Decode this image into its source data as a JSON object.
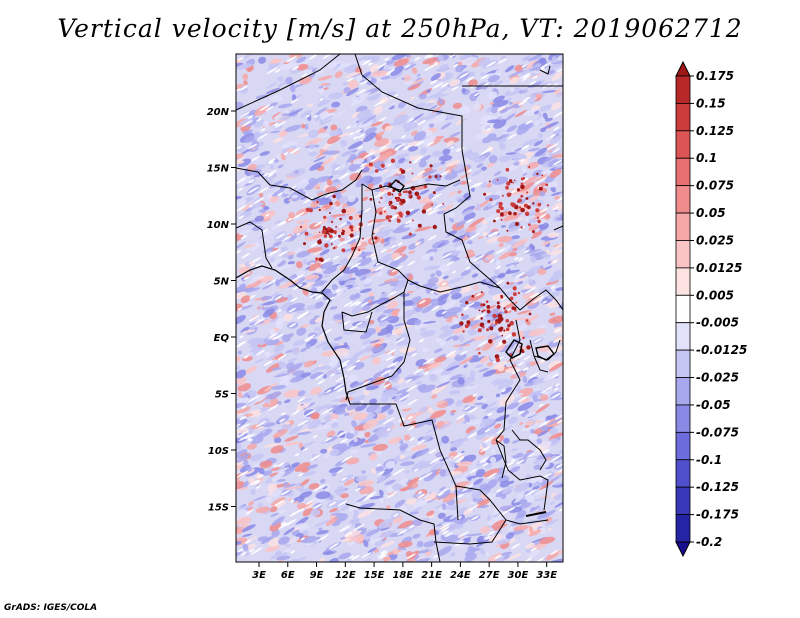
{
  "title": "Vertical velocity [m/s] at 250hPa, VT: 2019062712",
  "credit": "GrADS: IGES/COLA",
  "map": {
    "lat_labels": [
      {
        "lat": 20,
        "label": "20N"
      },
      {
        "lat": 15,
        "label": "15N"
      },
      {
        "lat": 10,
        "label": "10N"
      },
      {
        "lat": 5,
        "label": "5N"
      },
      {
        "lat": 0,
        "label": "EQ"
      },
      {
        "lat": -5,
        "label": "5S"
      },
      {
        "lat": -10,
        "label": "10S"
      },
      {
        "lat": -15,
        "label": "15S"
      }
    ],
    "lon_labels": [
      {
        "lon": 3,
        "label": "3E"
      },
      {
        "lon": 6,
        "label": "6E"
      },
      {
        "lon": 9,
        "label": "9E"
      },
      {
        "lon": 12,
        "label": "12E"
      },
      {
        "lon": 15,
        "label": "15E"
      },
      {
        "lon": 18,
        "label": "18E"
      },
      {
        "lon": 21,
        "label": "21E"
      },
      {
        "lon": 24,
        "label": "24E"
      },
      {
        "lon": 27,
        "label": "27E"
      },
      {
        "lon": 30,
        "label": "30E"
      },
      {
        "lon": 33,
        "label": "33E"
      }
    ]
  },
  "colorbar": {
    "levels": [
      "0.175",
      "0.15",
      "0.125",
      "0.1",
      "0.075",
      "0.05",
      "0.025",
      "0.0125",
      "0.005",
      "-0.005",
      "-0.0125",
      "-0.025",
      "-0.05",
      "-0.075",
      "-0.1",
      "-0.125",
      "-0.175",
      "-0.2"
    ],
    "colors": [
      "#a01818",
      "#b82828",
      "#cc3c3c",
      "#dc5454",
      "#e87070",
      "#f08c8c",
      "#f6a8a8",
      "#fac4c4",
      "#fde2e2",
      "#ffffff",
      "#e2e2fb",
      "#c6c6f5",
      "#a8a8ef",
      "#8a8ae6",
      "#6c6cdc",
      "#5050cc",
      "#3838b8",
      "#2424a4",
      "#180c90"
    ]
  }
}
